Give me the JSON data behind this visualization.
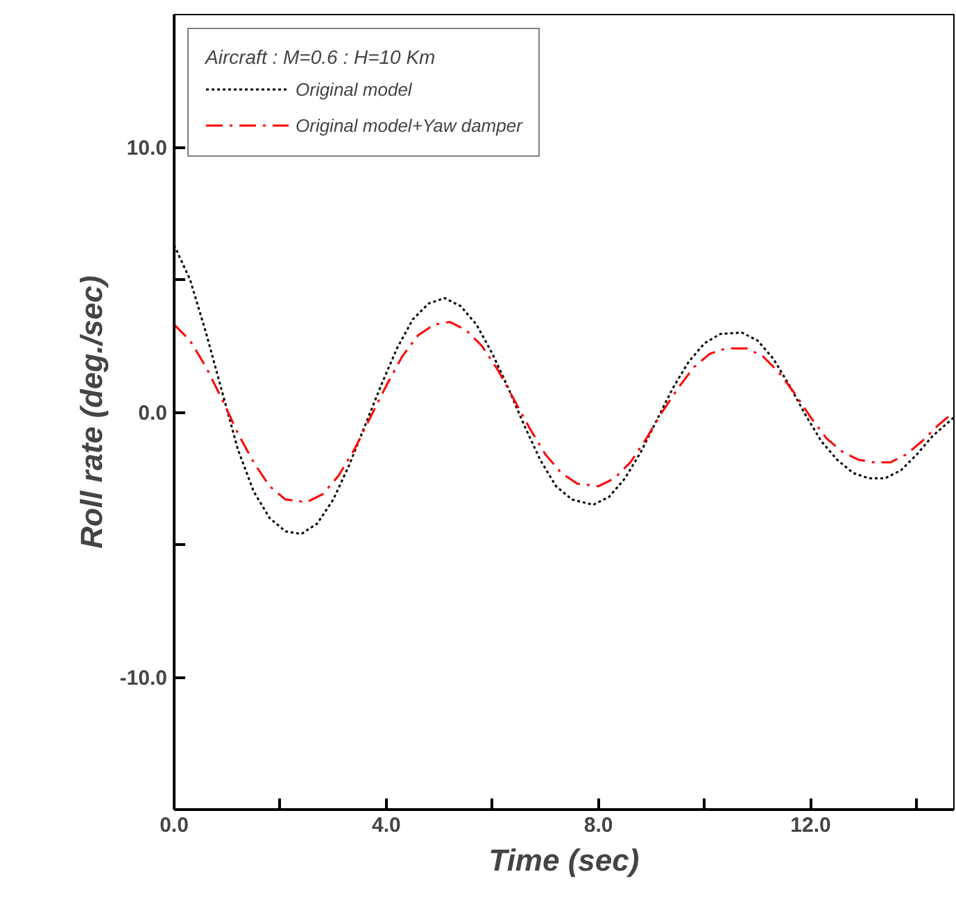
{
  "chart_data": {
    "type": "line",
    "xlabel": "Time (sec)",
    "ylabel": "Roll rate (deg./sec)",
    "legend_title": "Aircraft : M=0.6 : H=10 Km",
    "legend": "top left",
    "grid": false,
    "marker": "none",
    "xlim": [
      0,
      14.7
    ],
    "ylim": [
      -15,
      15
    ],
    "xticks": [
      {
        "value": 0,
        "label": "0.0"
      },
      {
        "value": 2,
        "label": null
      },
      {
        "value": 4,
        "label": "4.0"
      },
      {
        "value": 6,
        "label": null
      },
      {
        "value": 8,
        "label": "8.0"
      },
      {
        "value": 10,
        "label": null
      },
      {
        "value": 12,
        "label": "12.0"
      },
      {
        "value": 14,
        "label": null
      }
    ],
    "yticks": [
      {
        "value": -10,
        "label": "-10.0"
      },
      {
        "value": -5,
        "label": null
      },
      {
        "value": 0,
        "label": "0.0"
      },
      {
        "value": 5,
        "label": null
      },
      {
        "value": 10,
        "label": "10.0"
      }
    ],
    "series": [
      {
        "name": "Original model",
        "color": "#000000",
        "line_style": "dotted",
        "x": [
          0,
          0.3,
          0.6,
          0.9,
          1.2,
          1.5,
          1.8,
          2.1,
          2.4,
          2.7,
          3.0,
          3.3,
          3.6,
          3.9,
          4.2,
          4.5,
          4.8,
          5.1,
          5.4,
          5.7,
          6.0,
          6.3,
          6.6,
          6.9,
          7.2,
          7.5,
          7.9,
          8.2,
          8.5,
          8.8,
          9.1,
          9.4,
          9.7,
          10.0,
          10.3,
          10.7,
          11.0,
          11.3,
          11.6,
          11.9,
          12.2,
          12.5,
          12.8,
          13.1,
          13.4,
          13.7,
          14.0,
          14.3,
          14.7
        ],
        "values": [
          6.3,
          5.0,
          3.0,
          0.8,
          -1.4,
          -3.0,
          -4.0,
          -4.5,
          -4.6,
          -4.2,
          -3.3,
          -2.0,
          -0.5,
          1.0,
          2.4,
          3.5,
          4.1,
          4.3,
          4.0,
          3.3,
          2.2,
          0.9,
          -0.5,
          -1.8,
          -2.8,
          -3.3,
          -3.5,
          -3.2,
          -2.5,
          -1.5,
          -0.3,
          0.9,
          1.9,
          2.6,
          2.95,
          3.0,
          2.7,
          2.0,
          1.0,
          -0.1,
          -1.1,
          -1.8,
          -2.3,
          -2.5,
          -2.5,
          -2.2,
          -1.6,
          -0.9,
          -0.2
        ]
      },
      {
        "name": "Original model+Yaw damper",
        "color": "#ff0000",
        "line_style": "dashed",
        "x": [
          0,
          0.3,
          0.6,
          0.9,
          1.2,
          1.5,
          1.8,
          2.1,
          2.5,
          2.8,
          3.1,
          3.4,
          3.7,
          4.0,
          4.3,
          4.6,
          4.9,
          5.2,
          5.5,
          5.8,
          6.1,
          6.4,
          6.7,
          7.0,
          7.3,
          7.6,
          8.0,
          8.3,
          8.6,
          8.9,
          9.2,
          9.5,
          9.8,
          10.1,
          10.4,
          10.8,
          11.1,
          11.4,
          11.7,
          12.0,
          12.3,
          12.6,
          12.9,
          13.2,
          13.5,
          13.8,
          14.1,
          14.4,
          14.7
        ],
        "values": [
          3.3,
          2.7,
          1.7,
          0.5,
          -0.8,
          -1.9,
          -2.8,
          -3.3,
          -3.4,
          -3.1,
          -2.4,
          -1.4,
          -0.2,
          1.0,
          2.1,
          2.9,
          3.3,
          3.4,
          3.1,
          2.5,
          1.6,
          0.5,
          -0.6,
          -1.6,
          -2.3,
          -2.7,
          -2.8,
          -2.5,
          -1.9,
          -1.0,
          0.0,
          0.9,
          1.7,
          2.2,
          2.4,
          2.4,
          2.1,
          1.5,
          0.7,
          -0.2,
          -1.0,
          -1.5,
          -1.8,
          -1.9,
          -1.9,
          -1.6,
          -1.1,
          -0.5,
          0.0
        ]
      }
    ]
  }
}
